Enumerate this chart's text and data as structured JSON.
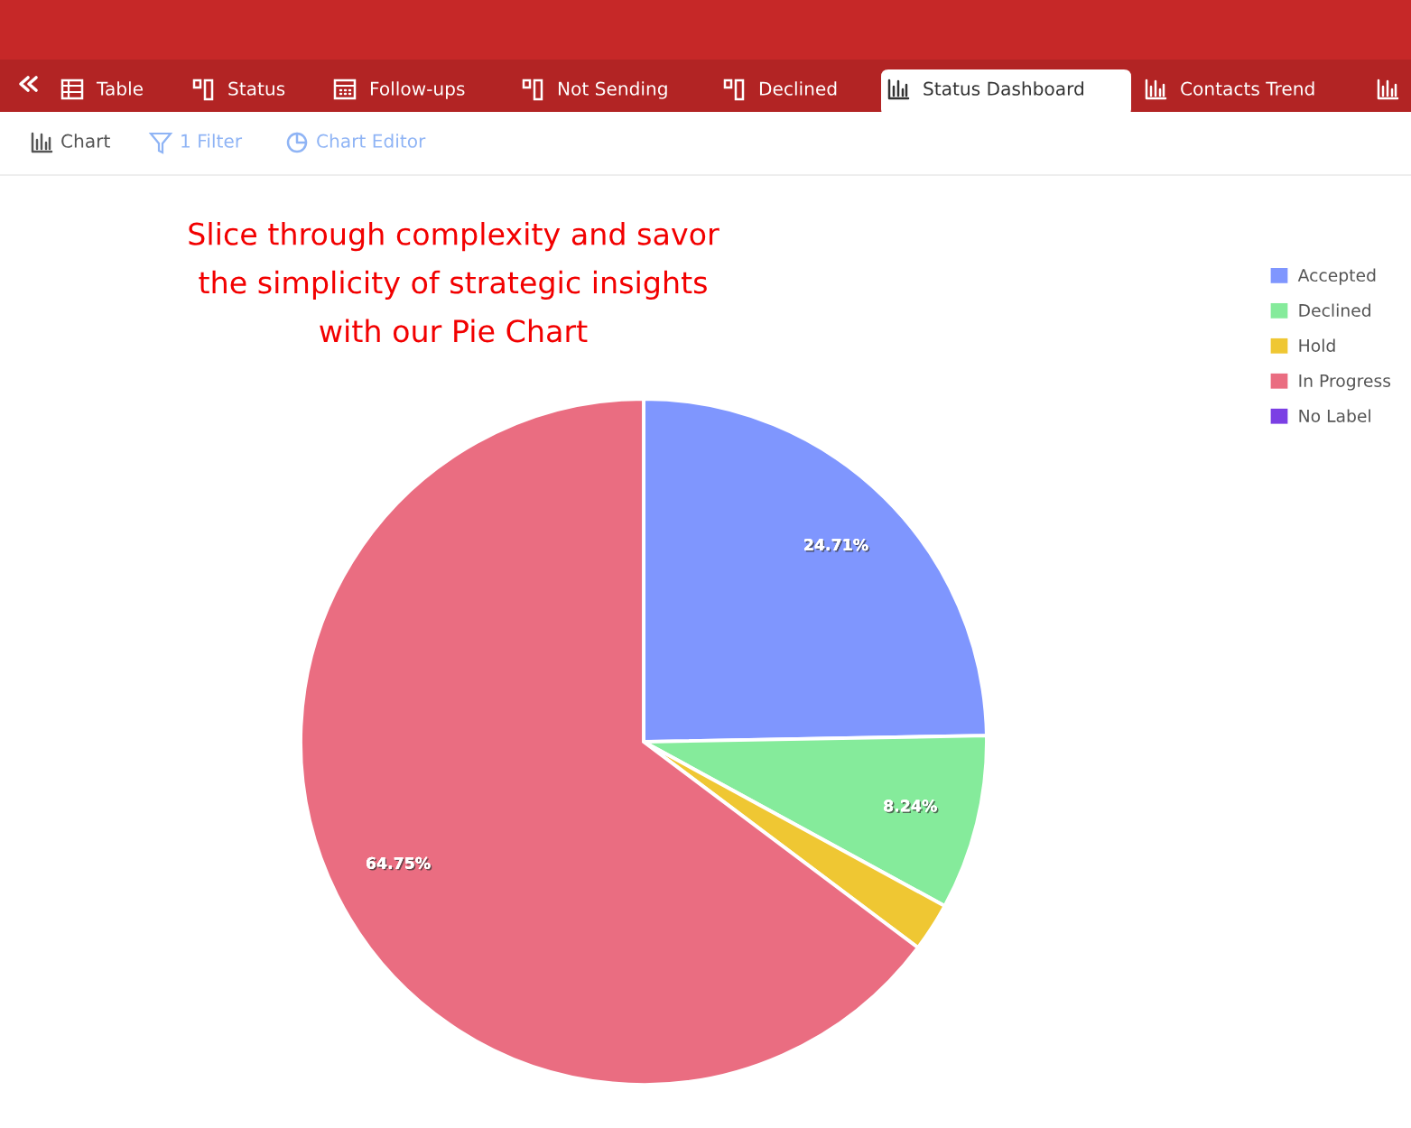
{
  "chart_data": {
    "type": "pie",
    "title": "Slice through complexity and savor the simplicity of strategic insights with our Pie Chart",
    "categories": [
      "Accepted",
      "Declined",
      "Hold",
      "In Progress",
      "No Label"
    ],
    "values": [
      24.71,
      8.24,
      2.3,
      64.75,
      0
    ],
    "colors": [
      "#7f96fe",
      "#85eb9b",
      "#efc733",
      "#ea6d81",
      "#7b3fe4"
    ],
    "value_labels": [
      "24.71%",
      "8.24%",
      null,
      "64.75%",
      null
    ],
    "legend": "top right",
    "annotations": [
      "Table",
      "Status",
      "Follow-ups",
      "Not Sending",
      "Declined",
      "Status Dashboard",
      "Contacts Trend",
      "Chart",
      "1 Filter",
      "Chart Editor"
    ]
  }
}
